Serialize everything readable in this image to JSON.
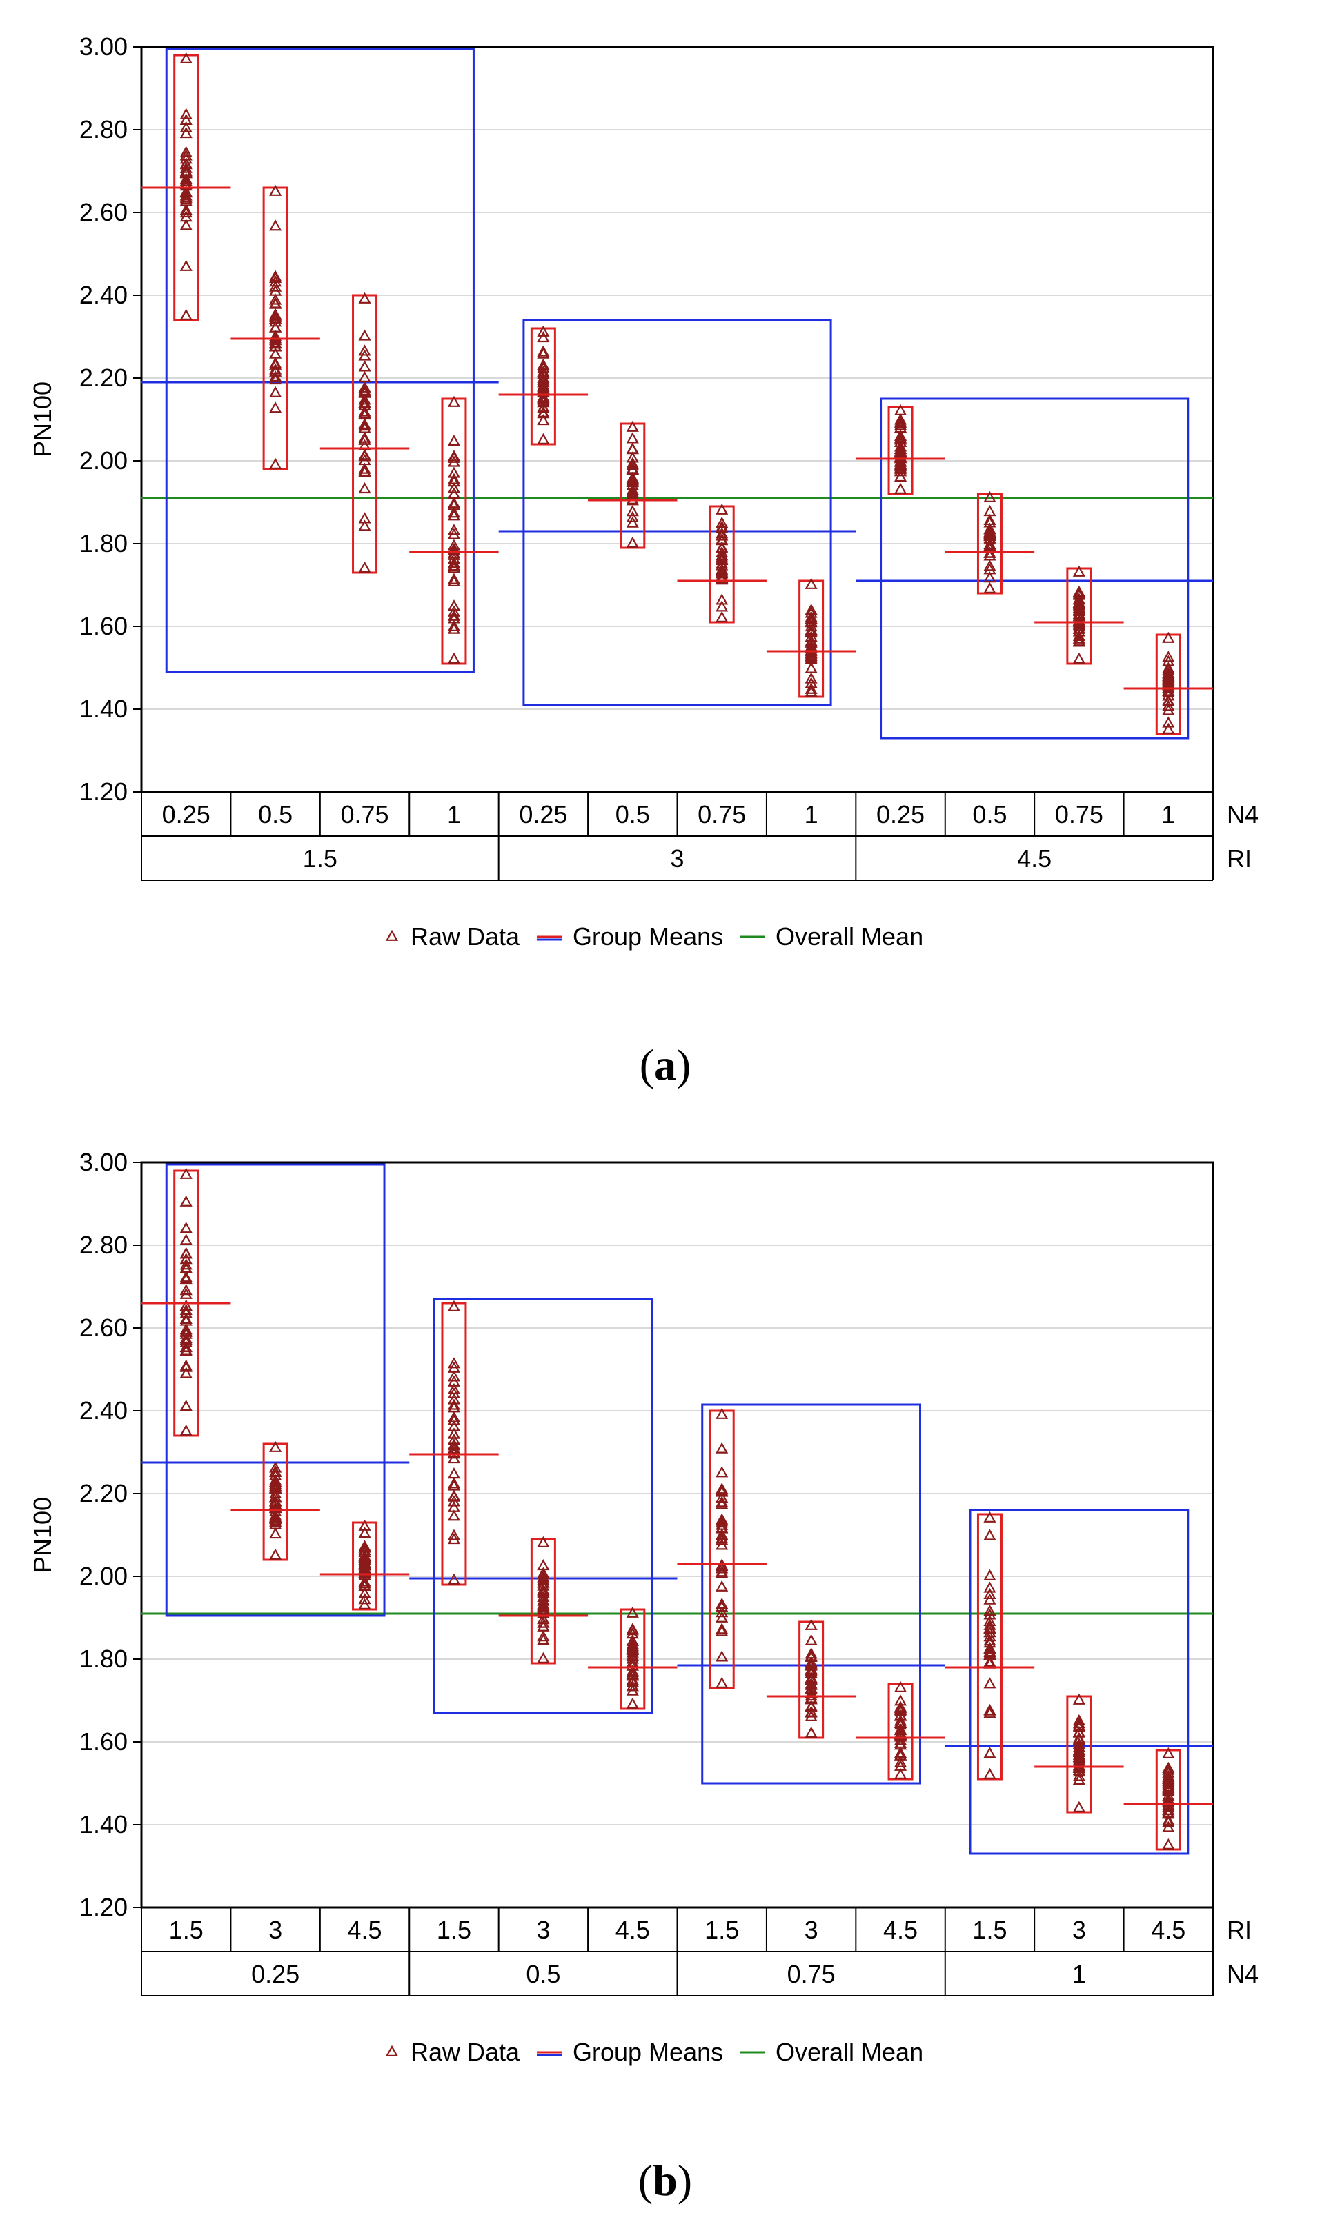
{
  "colors": {
    "raw": "#8b1a1a",
    "box_inner": "#e02020",
    "group_mean": "#e02020",
    "group_box": "#1f2fe0",
    "overall": "#1f8a1f",
    "grid": "#d9d9d9",
    "axis": "#000000"
  },
  "legend": {
    "raw": "Raw Data",
    "means": "Group Means",
    "overall": "Overall Mean"
  },
  "chart_data": [
    {
      "type": "scatter",
      "panel_label": "a",
      "ylabel": "PN100",
      "ylim": [
        1.2,
        3.0
      ],
      "yticks": [
        "1.20",
        "1.40",
        "1.60",
        "1.80",
        "2.00",
        "2.20",
        "2.40",
        "2.60",
        "2.80",
        "3.00"
      ],
      "inner_factor": "N4",
      "outer_factor": "RI",
      "overall_mean": 1.91,
      "outer_groups": [
        {
          "label": "1.5",
          "mean": 2.19,
          "min": 1.49,
          "max": 2.995,
          "cells": [
            {
              "label": "0.25",
              "mean": 2.66,
              "min": 2.34,
              "max": 2.98
            },
            {
              "label": "0.5",
              "mean": 2.295,
              "min": 1.98,
              "max": 2.66
            },
            {
              "label": "0.75",
              "mean": 2.03,
              "min": 1.73,
              "max": 2.4
            },
            {
              "label": "1",
              "mean": 1.78,
              "min": 1.51,
              "max": 2.15
            }
          ]
        },
        {
          "label": "3",
          "mean": 1.83,
          "min": 1.41,
          "max": 2.34,
          "cells": [
            {
              "label": "0.25",
              "mean": 2.16,
              "min": 2.04,
              "max": 2.32
            },
            {
              "label": "0.5",
              "mean": 1.905,
              "min": 1.79,
              "max": 2.09
            },
            {
              "label": "0.75",
              "mean": 1.71,
              "min": 1.61,
              "max": 1.89
            },
            {
              "label": "1",
              "mean": 1.54,
              "min": 1.43,
              "max": 1.71
            }
          ]
        },
        {
          "label": "4.5",
          "mean": 1.71,
          "min": 1.33,
          "max": 2.15,
          "cells": [
            {
              "label": "0.25",
              "mean": 2.005,
              "min": 1.92,
              "max": 2.13
            },
            {
              "label": "0.5",
              "mean": 1.78,
              "min": 1.68,
              "max": 1.92
            },
            {
              "label": "0.75",
              "mean": 1.61,
              "min": 1.51,
              "max": 1.74
            },
            {
              "label": "1",
              "mean": 1.45,
              "min": 1.34,
              "max": 1.58
            }
          ]
        }
      ]
    },
    {
      "type": "scatter",
      "panel_label": "b",
      "ylabel": "PN100",
      "ylim": [
        1.2,
        3.0
      ],
      "yticks": [
        "1.20",
        "1.40",
        "1.60",
        "1.80",
        "2.00",
        "2.20",
        "2.40",
        "2.60",
        "2.80",
        "3.00"
      ],
      "inner_factor": "RI",
      "outer_factor": "N4",
      "overall_mean": 1.91,
      "outer_groups": [
        {
          "label": "0.25",
          "mean": 2.275,
          "min": 1.905,
          "max": 2.995,
          "cells": [
            {
              "label": "1.5",
              "mean": 2.66,
              "min": 2.34,
              "max": 2.98
            },
            {
              "label": "3",
              "mean": 2.16,
              "min": 2.04,
              "max": 2.32
            },
            {
              "label": "4.5",
              "mean": 2.005,
              "min": 1.92,
              "max": 2.13
            }
          ]
        },
        {
          "label": "0.5",
          "mean": 1.995,
          "min": 1.67,
          "max": 2.67,
          "cells": [
            {
              "label": "1.5",
              "mean": 2.295,
              "min": 1.98,
              "max": 2.66
            },
            {
              "label": "3",
              "mean": 1.905,
              "min": 1.79,
              "max": 2.09
            },
            {
              "label": "4.5",
              "mean": 1.78,
              "min": 1.68,
              "max": 1.92
            }
          ]
        },
        {
          "label": "0.75",
          "mean": 1.785,
          "min": 1.5,
          "max": 2.415,
          "cells": [
            {
              "label": "1.5",
              "mean": 2.03,
              "min": 1.73,
              "max": 2.4
            },
            {
              "label": "3",
              "mean": 1.71,
              "min": 1.61,
              "max": 1.89
            },
            {
              "label": "4.5",
              "mean": 1.61,
              "min": 1.51,
              "max": 1.74
            }
          ]
        },
        {
          "label": "1",
          "mean": 1.59,
          "min": 1.33,
          "max": 2.16,
          "cells": [
            {
              "label": "1.5",
              "mean": 1.78,
              "min": 1.51,
              "max": 2.15
            },
            {
              "label": "3",
              "mean": 1.54,
              "min": 1.43,
              "max": 1.71
            },
            {
              "label": "4.5",
              "mean": 1.45,
              "min": 1.34,
              "max": 1.58
            }
          ]
        }
      ]
    }
  ]
}
